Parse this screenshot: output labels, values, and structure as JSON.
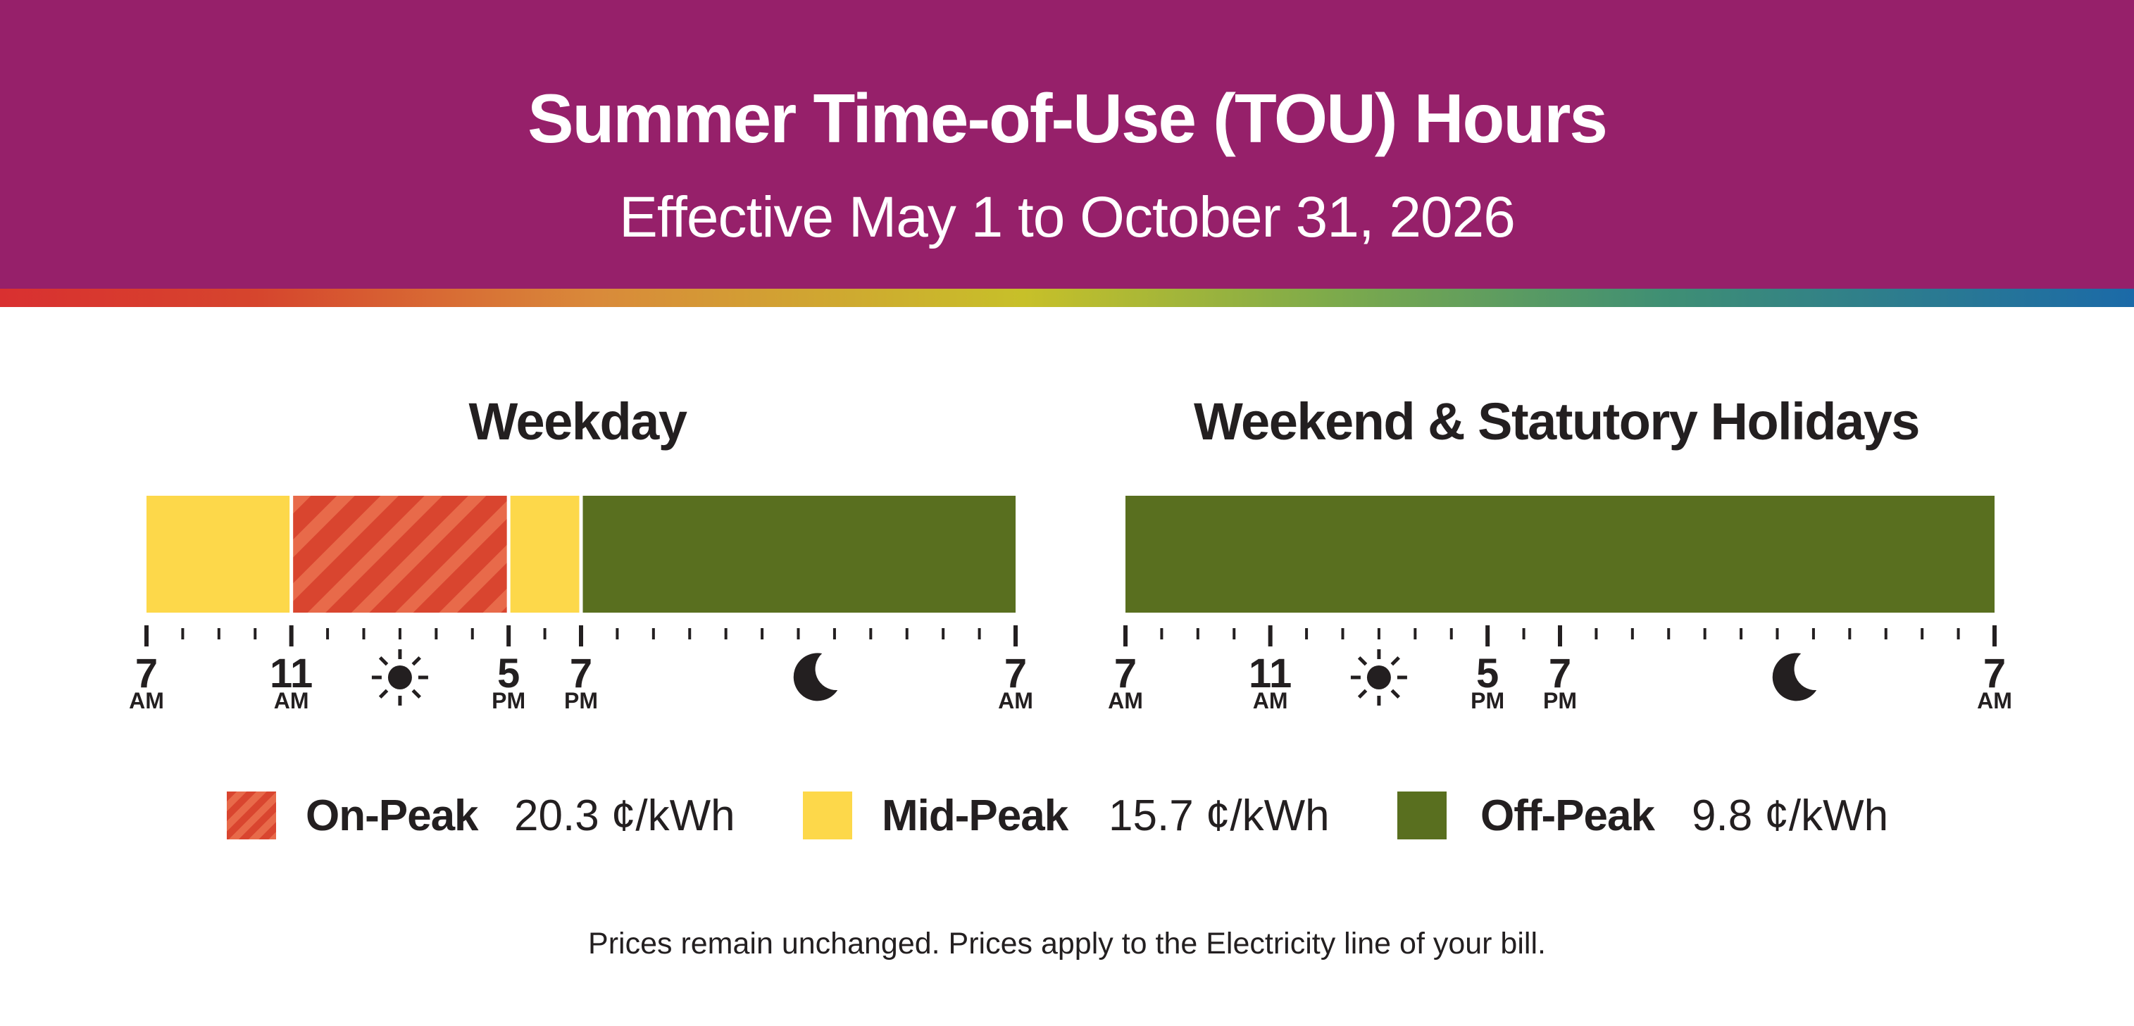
{
  "header": {
    "title": "Summer Time-of-Use (TOU) Hours",
    "subtitle": "Effective May 1 to October 31, 2026"
  },
  "colors": {
    "header_bg": "#96206a",
    "on_peak": "#d9452f",
    "on_peak_stripe": "#e86a4a",
    "mid_peak": "#fdd84a",
    "off_peak": "#596f1f",
    "text": "#231f20"
  },
  "legend": [
    {
      "key": "on_peak",
      "name": "On-Peak",
      "price": "20.3 ¢/kWh"
    },
    {
      "key": "mid_peak",
      "name": "Mid-Peak",
      "price": "15.7 ¢/kWh"
    },
    {
      "key": "off_peak",
      "name": "Off-Peak",
      "price": "9.8 ¢/kWh"
    }
  ],
  "footnote": "Prices remain unchanged. Prices apply to the Electricity line of your bill.",
  "chart_data": [
    {
      "type": "timeline",
      "title": "Weekday",
      "x_unit": "hours since 7 AM",
      "xlim": [
        0,
        24
      ],
      "segments": [
        {
          "start": 0,
          "end": 4,
          "rate": "mid_peak"
        },
        {
          "start": 4,
          "end": 10,
          "rate": "on_peak"
        },
        {
          "start": 10,
          "end": 12,
          "rate": "mid_peak"
        },
        {
          "start": 12,
          "end": 24,
          "rate": "off_peak"
        }
      ],
      "tick_labels": [
        {
          "at": 0,
          "hour": "7",
          "period": "AM"
        },
        {
          "at": 4,
          "hour": "11",
          "period": "AM"
        },
        {
          "at": 10,
          "hour": "5",
          "period": "PM"
        },
        {
          "at": 12,
          "hour": "7",
          "period": "PM"
        },
        {
          "at": 24,
          "hour": "7",
          "period": "AM"
        }
      ],
      "icons": [
        {
          "name": "sun-icon",
          "at": 7
        },
        {
          "name": "moon-icon",
          "at": 18.5
        }
      ]
    },
    {
      "type": "timeline",
      "title": "Weekend & Statutory Holidays",
      "x_unit": "hours since 7 AM",
      "xlim": [
        0,
        24
      ],
      "segments": [
        {
          "start": 0,
          "end": 24,
          "rate": "off_peak"
        }
      ],
      "tick_labels": [
        {
          "at": 0,
          "hour": "7",
          "period": "AM"
        },
        {
          "at": 4,
          "hour": "11",
          "period": "AM"
        },
        {
          "at": 10,
          "hour": "5",
          "period": "PM"
        },
        {
          "at": 12,
          "hour": "7",
          "period": "PM"
        },
        {
          "at": 24,
          "hour": "7",
          "period": "AM"
        }
      ],
      "icons": [
        {
          "name": "sun-icon",
          "at": 7
        },
        {
          "name": "moon-icon",
          "at": 18.5
        }
      ]
    }
  ]
}
